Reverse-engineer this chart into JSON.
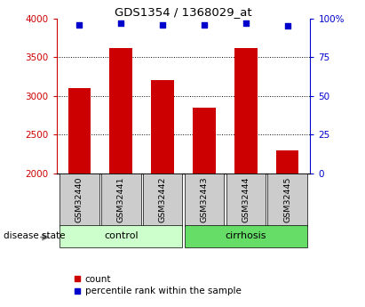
{
  "title": "GDS1354 / 1368029_at",
  "samples": [
    "GSM32440",
    "GSM32441",
    "GSM32442",
    "GSM32443",
    "GSM32444",
    "GSM32445"
  ],
  "counts": [
    3100,
    3620,
    3200,
    2850,
    3620,
    2300
  ],
  "percentiles": [
    96,
    97,
    96,
    96,
    97,
    95
  ],
  "groups": [
    {
      "label": "control",
      "samples": [
        0,
        1,
        2
      ],
      "color": "#ccffcc"
    },
    {
      "label": "cirrhosis",
      "samples": [
        3,
        4,
        5
      ],
      "color": "#66dd66"
    }
  ],
  "bar_color": "#cc0000",
  "dot_color": "#0000cc",
  "ylim_left": [
    2000,
    4000
  ],
  "ylim_right": [
    0,
    100
  ],
  "yticks_left": [
    2000,
    2500,
    3000,
    3500,
    4000
  ],
  "yticks_right": [
    0,
    25,
    50,
    75,
    100
  ],
  "yticklabels_right": [
    "0",
    "25",
    "50",
    "75",
    "100%"
  ],
  "grid_values": [
    2500,
    3000,
    3500
  ],
  "background_color": "#ffffff",
  "sample_box_color": "#cccccc",
  "legend_count_label": "count",
  "legend_percentile_label": "percentile rank within the sample",
  "disease_state_label": "disease state"
}
